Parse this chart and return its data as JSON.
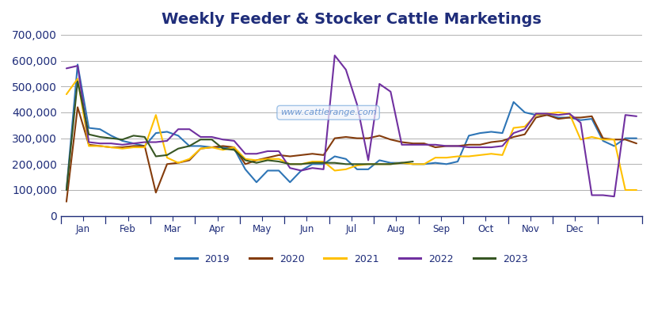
{
  "title": "Weekly Feeder & Stocker Cattle Marketings",
  "title_color": "#1f2d7a",
  "title_fontsize": 14,
  "background_color": "#ffffff",
  "grid_color": "#b0b0b0",
  "watermark": "www.cattlerange.com",
  "ylim": [
    0,
    700000
  ],
  "yticks": [
    0,
    100000,
    200000,
    300000,
    400000,
    500000,
    600000,
    700000
  ],
  "months": [
    "Jan",
    "Feb",
    "Mar",
    "Apr",
    "May",
    "Jun",
    "Jul",
    "Aug",
    "Sep",
    "Oct",
    "Nov",
    "Dec"
  ],
  "series": {
    "2019": {
      "color": "#2e75b6",
      "data": [
        100000,
        585000,
        340000,
        335000,
        310000,
        290000,
        280000,
        270000,
        320000,
        325000,
        310000,
        270000,
        270000,
        265000,
        265000,
        260000,
        180000,
        130000,
        175000,
        175000,
        130000,
        175000,
        200000,
        200000,
        230000,
        220000,
        180000,
        180000,
        215000,
        205000,
        205000,
        200000,
        200000,
        205000,
        200000,
        210000,
        310000,
        320000,
        325000,
        320000,
        440000,
        400000,
        390000,
        390000,
        380000,
        380000,
        370000,
        375000,
        290000,
        270000,
        300000,
        300000
      ]
    },
    "2020": {
      "color": "#843c0c",
      "data": [
        55000,
        420000,
        275000,
        270000,
        265000,
        265000,
        270000,
        270000,
        90000,
        200000,
        205000,
        215000,
        260000,
        265000,
        270000,
        265000,
        200000,
        215000,
        225000,
        235000,
        230000,
        235000,
        240000,
        235000,
        300000,
        305000,
        300000,
        300000,
        310000,
        295000,
        285000,
        280000,
        280000,
        265000,
        270000,
        270000,
        275000,
        275000,
        285000,
        290000,
        305000,
        315000,
        380000,
        390000,
        375000,
        380000,
        380000,
        385000,
        300000,
        295000,
        295000,
        280000
      ]
    },
    "2021": {
      "color": "#ffc000",
      "data": [
        470000,
        530000,
        270000,
        270000,
        265000,
        260000,
        265000,
        265000,
        390000,
        225000,
        205000,
        220000,
        260000,
        265000,
        255000,
        265000,
        220000,
        215000,
        220000,
        220000,
        200000,
        200000,
        210000,
        210000,
        175000,
        180000,
        195000,
        200000,
        200000,
        200000,
        205000,
        200000,
        200000,
        225000,
        225000,
        230000,
        230000,
        235000,
        240000,
        235000,
        340000,
        345000,
        390000,
        395000,
        400000,
        395000,
        295000,
        305000,
        295000,
        295000,
        100000,
        100000
      ]
    },
    "2022": {
      "color": "#7030a0",
      "data": [
        570000,
        580000,
        285000,
        280000,
        280000,
        275000,
        280000,
        285000,
        285000,
        290000,
        335000,
        335000,
        305000,
        305000,
        295000,
        290000,
        240000,
        240000,
        250000,
        250000,
        185000,
        175000,
        185000,
        180000,
        620000,
        565000,
        430000,
        215000,
        510000,
        480000,
        275000,
        275000,
        275000,
        275000,
        270000,
        270000,
        265000,
        265000,
        265000,
        270000,
        320000,
        335000,
        395000,
        395000,
        390000,
        395000,
        360000,
        80000,
        80000,
        75000,
        390000,
        385000
      ]
    },
    "2023": {
      "color": "#375623",
      "data": [
        100000,
        520000,
        315000,
        305000,
        300000,
        295000,
        310000,
        305000,
        230000,
        235000,
        260000,
        270000,
        295000,
        295000,
        260000,
        255000,
        215000,
        205000,
        215000,
        210000,
        200000,
        200000,
        205000,
        205000,
        205000,
        200000,
        200000,
        200000,
        200000,
        200000,
        205000,
        210000,
        null,
        null,
        null,
        null,
        null,
        null,
        null,
        null,
        null,
        null,
        null,
        null,
        null,
        null,
        null,
        null,
        null,
        null,
        null,
        null
      ]
    }
  },
  "n_points": 52,
  "month_boundaries": [
    0,
    4,
    8,
    12,
    16,
    20,
    24,
    28,
    32,
    36,
    40,
    44,
    48,
    52
  ],
  "legend_entries": [
    "2019",
    "2020",
    "2021",
    "2022",
    "2023"
  ],
  "legend_colors": [
    "#2e75b6",
    "#843c0c",
    "#ffc000",
    "#7030a0",
    "#375623"
  ]
}
